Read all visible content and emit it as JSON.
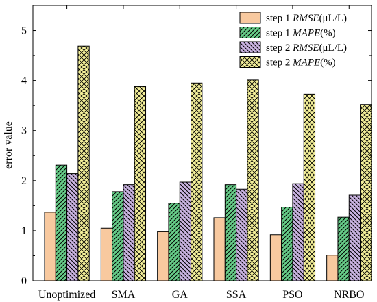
{
  "chart_data": {
    "type": "bar",
    "title": "",
    "xlabel": "",
    "ylabel": "error value",
    "ylim": [
      0,
      5.5
    ],
    "yticks": [
      0,
      1,
      2,
      3,
      4,
      5
    ],
    "grid": false,
    "legend_position": "top-right",
    "categories": [
      "Unoptimized",
      "SMA",
      "GA",
      "SSA",
      "PSO",
      "NRBO"
    ],
    "series": [
      {
        "name": "step 1  RMSE(μL/L)",
        "legend": {
          "prefix": "step 1  ",
          "metric": "RMSE",
          "unit": "(μL/L)"
        },
        "values": [
          1.37,
          1.05,
          0.98,
          1.26,
          0.92,
          0.51
        ],
        "color": "#f8c99f",
        "pattern": "solid"
      },
      {
        "name": "step 1 MAPE(%)",
        "legend": {
          "prefix": "step 1 ",
          "metric": "MAPE",
          "unit": "(%)"
        },
        "values": [
          2.31,
          1.78,
          1.55,
          1.92,
          1.47,
          1.27
        ],
        "color": "#66cc88",
        "pattern": "forward-diagonal"
      },
      {
        "name": "step 2 RMSE(μL/L)",
        "legend": {
          "prefix": "step 2 ",
          "metric": "RMSE",
          "unit": "(μL/L)"
        },
        "values": [
          2.14,
          1.92,
          1.97,
          1.83,
          1.94,
          1.71
        ],
        "color": "#c9b3e0",
        "pattern": "back-diagonal"
      },
      {
        "name": "step 2 MAPE(%)",
        "legend": {
          "prefix": "step 2 ",
          "metric": "MAPE",
          "unit": "(%)"
        },
        "values": [
          4.69,
          3.88,
          3.95,
          4.01,
          3.73,
          3.52
        ],
        "color": "#f4f09a",
        "pattern": "crosshatch"
      }
    ]
  }
}
